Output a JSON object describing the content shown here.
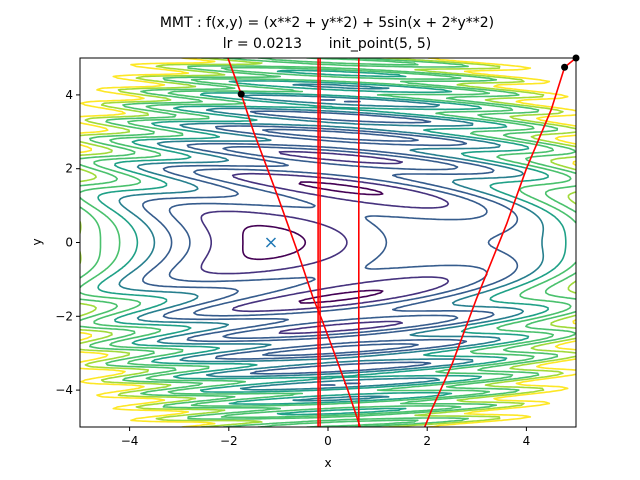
{
  "chart_data": {
    "type": "contour",
    "title_line1": "MMT : f(x,y) = (x**2 + y**2) + 5sin(x + 2*y**2)",
    "title_line2": "lr = 0.0213      init_point(5, 5)",
    "xlabel": "x",
    "ylabel": "y",
    "xlim": [
      -5,
      5
    ],
    "ylim": [
      -5,
      5
    ],
    "x_ticks": [
      -4,
      -2,
      0,
      2,
      4
    ],
    "y_ticks": [
      -4,
      -2,
      0,
      2,
      4
    ],
    "x_tick_labels": [
      "−4",
      "−2",
      "0",
      "2",
      "4"
    ],
    "y_tick_labels": [
      "−4",
      "−2",
      "0",
      "2",
      "4"
    ],
    "function": "(x**2 + y**2) + 5*sin(x + 2*y**2)",
    "contour_levels": [
      -2,
      2,
      6,
      10,
      14,
      18,
      22,
      26,
      30,
      34
    ],
    "colormap": [
      "#440154",
      "#46327e",
      "#365c8d",
      "#277f8e",
      "#1fa187",
      "#4ac16d",
      "#a0da39",
      "#fde725"
    ],
    "marker": {
      "x": -1.15,
      "y": 0.0,
      "symbol": "x",
      "color": "#1f77b4"
    },
    "paths": [
      {
        "color": "#ff0000",
        "points": [
          [
            5.0,
            5.0
          ],
          [
            4.77,
            4.75
          ],
          [
            4.5,
            3.6
          ],
          [
            4.0,
            2.0
          ],
          [
            3.6,
            0.5
          ],
          [
            3.0,
            -1.5
          ],
          [
            2.5,
            -3.3
          ],
          [
            2.1,
            -4.5
          ],
          [
            1.95,
            -5.0
          ]
        ]
      },
      {
        "color": "#ff0000",
        "points": [
          [
            -2.1,
            5.3
          ],
          [
            -1.75,
            4.02
          ],
          [
            -1.5,
            3.0
          ],
          [
            -1.0,
            1.2
          ],
          [
            -0.6,
            -0.3
          ],
          [
            -0.3,
            -1.5
          ],
          [
            -0.12,
            -2.1
          ],
          [
            0.1,
            -2.9
          ],
          [
            0.4,
            -4.0
          ],
          [
            0.65,
            -5.0
          ]
        ]
      },
      {
        "color": "#ff0000",
        "points": [
          [
            -0.2,
            5.0
          ],
          [
            -0.2,
            -5.0
          ]
        ]
      },
      {
        "color": "#ff0000",
        "points": [
          [
            -0.16,
            5.0
          ],
          [
            -0.16,
            -5.0
          ]
        ]
      },
      {
        "color": "#ff0000",
        "points": [
          [
            0.62,
            5.0
          ],
          [
            0.62,
            -5.0
          ]
        ]
      }
    ],
    "points": [
      {
        "x": 5.0,
        "y": 5.0,
        "color": "#000000"
      },
      {
        "x": 4.77,
        "y": 4.75,
        "color": "#000000"
      },
      {
        "x": -1.75,
        "y": 4.02,
        "color": "#000000"
      }
    ]
  }
}
